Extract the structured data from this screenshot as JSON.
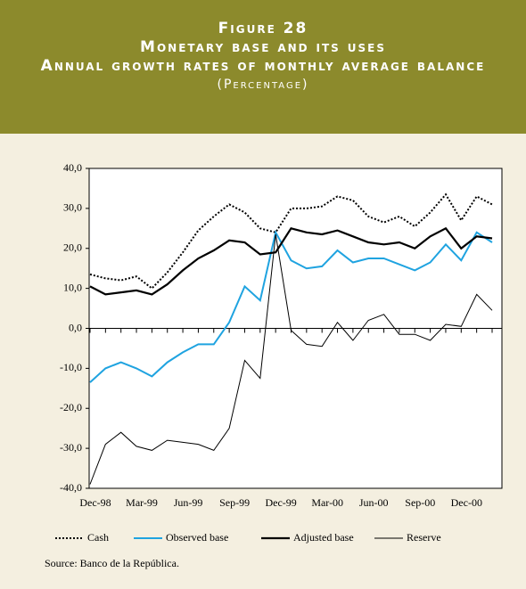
{
  "chart_data": {
    "type": "line",
    "title": "Figure 28",
    "subtitle": [
      "Monetary base and its uses",
      "Annual growth rates of monthly average balance",
      "(Percentage)"
    ],
    "source": "Source: Banco de la República.",
    "categories": [
      "Dec-98",
      null,
      null,
      "Mar-99",
      null,
      null,
      "Jun-99",
      null,
      null,
      "Sep-99",
      null,
      null,
      "Dec-99",
      null,
      null,
      "Mar-00",
      null,
      null,
      "Jun-00",
      null,
      null,
      "Sep-00",
      null,
      null,
      "Dec-00",
      null,
      null
    ],
    "series": [
      {
        "name": "Cash",
        "color": "#000000",
        "dash": "dotted",
        "values": [
          13.5,
          12.5,
          12,
          13,
          10,
          14,
          19,
          24.5,
          28,
          31,
          29,
          25,
          24,
          30,
          30,
          30.5,
          33,
          32,
          28,
          26.5,
          28,
          25.5,
          29,
          33.5,
          27,
          33,
          31
        ]
      },
      {
        "name": "Observed base",
        "color": "#1fa3e0",
        "values": [
          -13.5,
          -10,
          -8.5,
          -10,
          -12,
          -8.5,
          -6,
          -4,
          -4,
          1.5,
          10.5,
          7,
          24,
          17,
          15,
          15.5,
          19.5,
          16.5,
          17.5,
          17.5,
          16,
          14.5,
          16.5,
          21,
          17,
          24,
          21.5
        ]
      },
      {
        "name": "Adjusted base",
        "color": "#000000",
        "width": 2.2,
        "values": [
          10.5,
          8.5,
          9,
          9.5,
          8.5,
          11,
          14.5,
          17.5,
          19.5,
          22,
          21.5,
          18.5,
          19,
          25,
          24,
          23.5,
          24.5,
          23,
          21.5,
          21,
          21.5,
          20,
          23,
          25,
          20,
          23,
          22.5
        ]
      },
      {
        "name": "Reserve",
        "color": "#000000",
        "width": 1,
        "values": [
          -39,
          -29,
          -26,
          -29.5,
          -30.5,
          -28,
          -28.5,
          -29,
          -30.5,
          -25,
          -8,
          -12.5,
          23.5,
          -0.5,
          -4,
          -4.5,
          1.5,
          -3,
          2,
          3.5,
          -1.5,
          -1.5,
          -3,
          1,
          0.5,
          8.5,
          4.5
        ]
      }
    ],
    "ylim": [
      -40,
      40
    ],
    "yticks": [
      {
        "value": -40,
        "label": "-40,0"
      },
      {
        "value": -30,
        "label": "-30,0"
      },
      {
        "value": -20,
        "label": "-20,0"
      },
      {
        "value": -10,
        "label": "-10,0"
      },
      {
        "value": 0,
        "label": "0,0"
      },
      {
        "value": 10,
        "label": "10,0"
      },
      {
        "value": 20,
        "label": "20,0"
      },
      {
        "value": 30,
        "label": "30,0"
      },
      {
        "value": 40,
        "label": "40,0"
      }
    ],
    "legend": "bottom"
  }
}
